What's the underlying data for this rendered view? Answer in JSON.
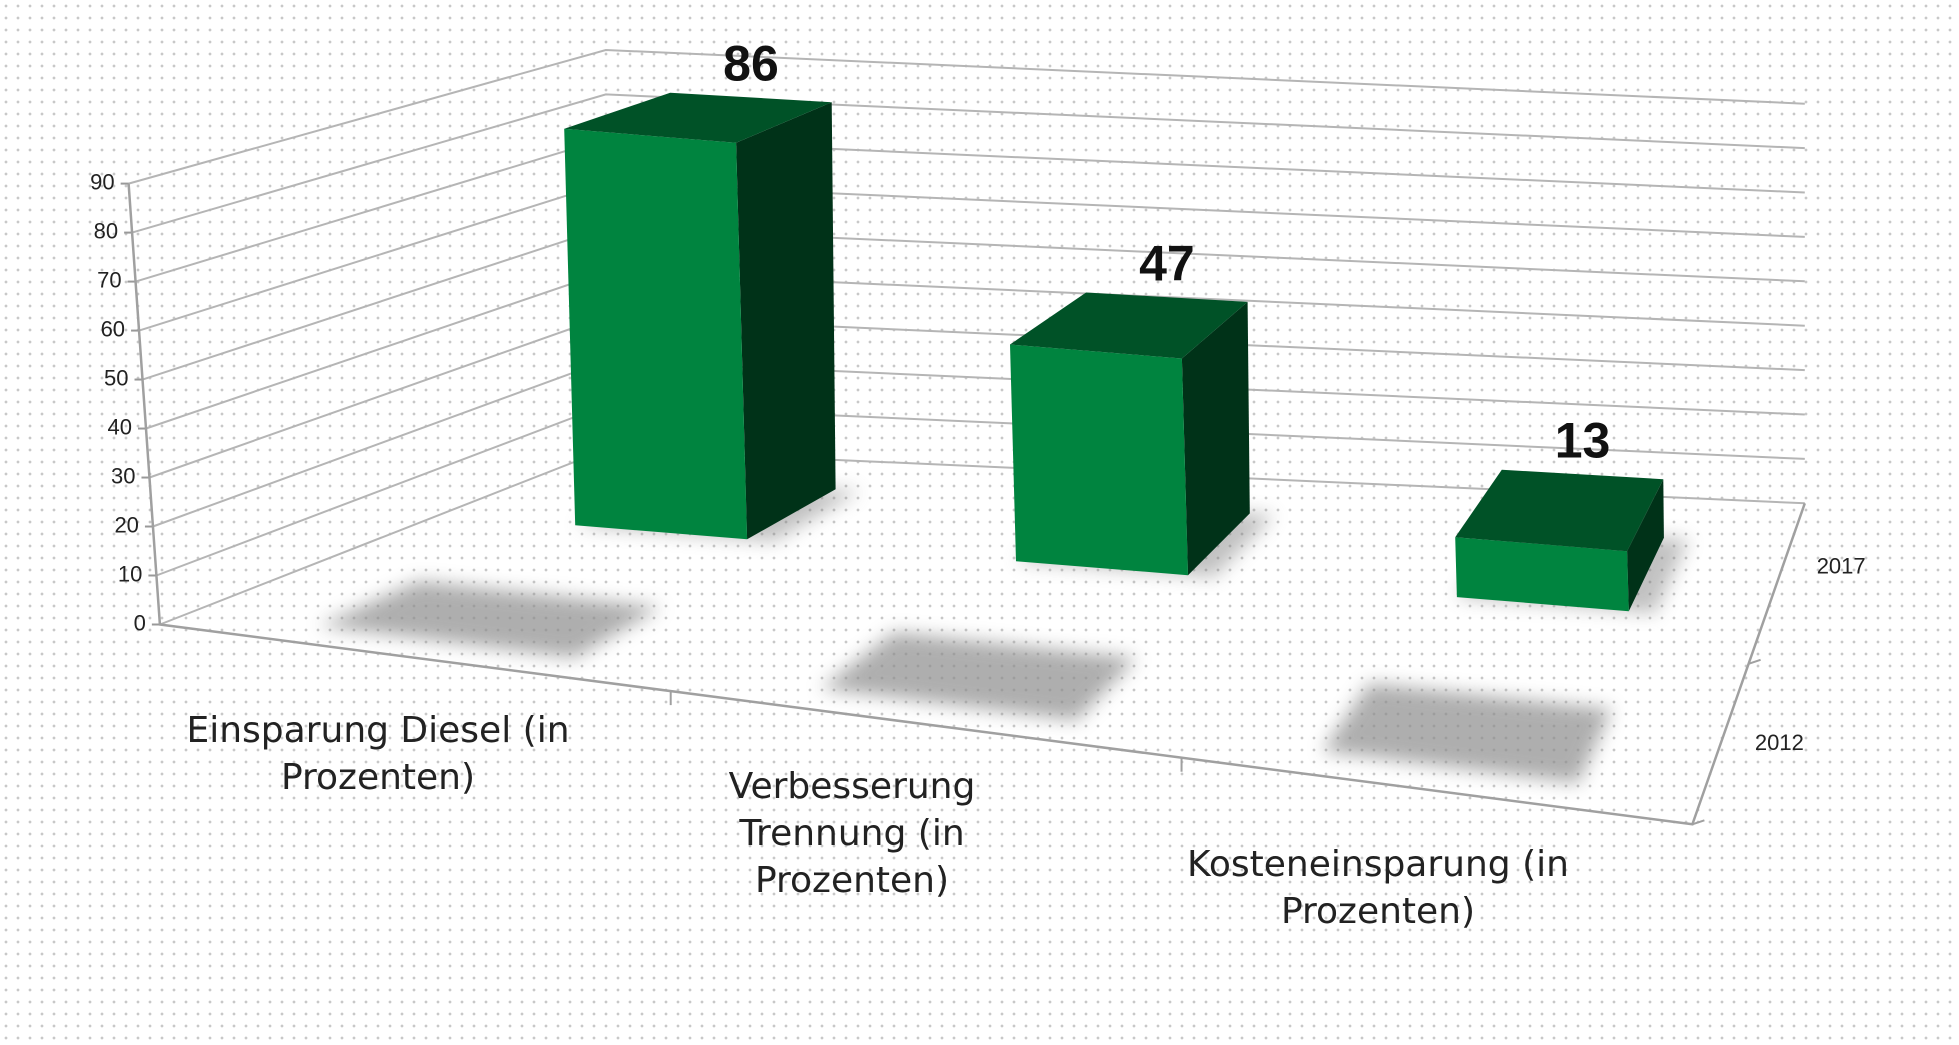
{
  "chart_data": {
    "type": "bar3d",
    "categories": [
      "Einsparung Diesel (in Prozenten)",
      "Verbesserung Trennung (in Prozenten)",
      "Kosteneinsparung (in Prozenten)"
    ],
    "series": [
      {
        "name": "2012",
        "color": "#8c8c8c",
        "values": [
          0,
          0,
          0
        ]
      },
      {
        "name": "2017",
        "color": "#00843f",
        "values": [
          86,
          47,
          13
        ]
      }
    ],
    "ylim": [
      0,
      90
    ],
    "yticks": [
      0,
      10,
      20,
      30,
      40,
      50,
      60,
      70,
      80,
      90
    ],
    "grid": true
  }
}
